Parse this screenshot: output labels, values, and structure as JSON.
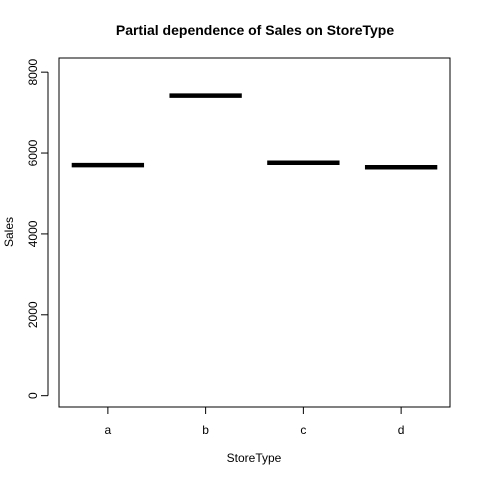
{
  "chart_data": {
    "type": "bar",
    "title": "Partial dependence of Sales on StoreType",
    "xlabel": "StoreType",
    "ylabel": "Sales",
    "categories": [
      "a",
      "b",
      "c",
      "d"
    ],
    "values": [
      5700,
      7420,
      5760,
      5650
    ],
    "ylim": [
      -280,
      8350
    ],
    "yticks": [
      0,
      2000,
      4000,
      6000,
      8000
    ],
    "grid": false,
    "legend": "none",
    "mark_style": "horizontal segment per category",
    "mark_color": "#000000"
  }
}
